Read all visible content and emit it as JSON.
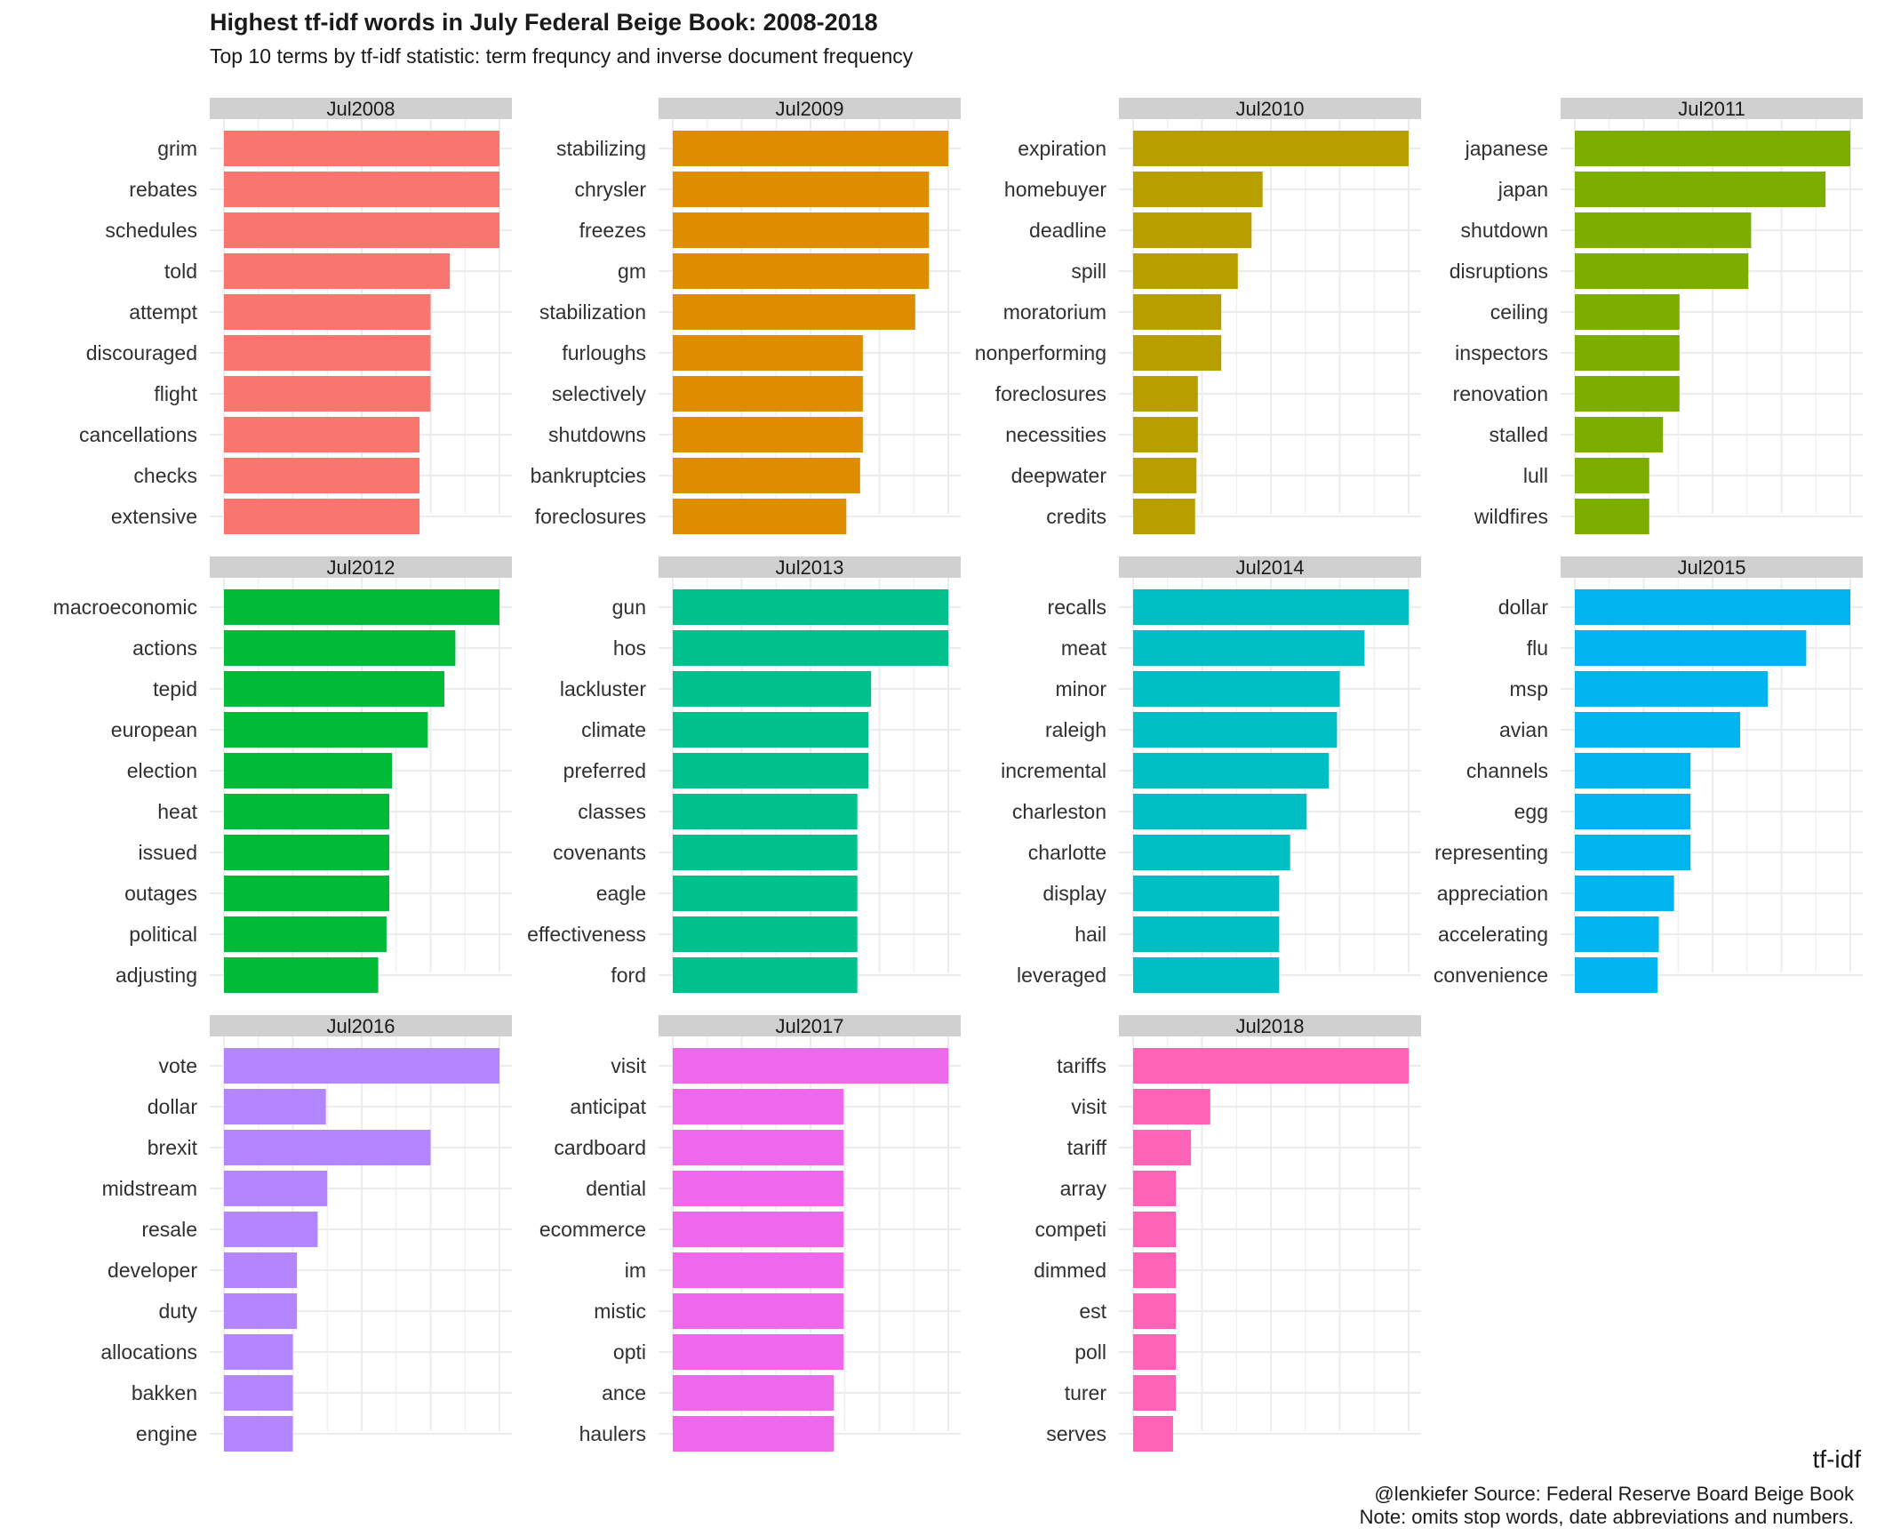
{
  "chart_data": {
    "type": "bar",
    "title": "Highest tf-idf words in July Federal Beige Book: 2008-2018",
    "subtitle": "Top 10 terms by tf-idf statistic: term frequncy and inverse document frequency",
    "xlabel": "tf-idf",
    "ylabel": "",
    "caption": [
      "@lenkiefer Source: Federal Reserve Board Beige Book",
      "Note: omits stop words, date abbreviations and numbers."
    ],
    "orientation": "horizontal",
    "facet_layout": "4 columns, free x scale per panel",
    "grid": true,
    "legend": "none",
    "panels": [
      {
        "name": "Jul2008",
        "color": "#F8766D",
        "terms": [
          "grim",
          "rebates",
          "schedules",
          "told",
          "attempt",
          "discouraged",
          "flight",
          "cancellations",
          "checks",
          "extensive"
        ],
        "values": [
          1.0,
          1.0,
          1.0,
          0.82,
          0.75,
          0.75,
          0.75,
          0.71,
          0.71,
          0.71
        ]
      },
      {
        "name": "Jul2009",
        "color": "#DE8C00",
        "terms": [
          "stabilizing",
          "chrysler",
          "freezes",
          "gm",
          "stabilization",
          "furloughs",
          "selectively",
          "shutdowns",
          "bankruptcies",
          "foreclosures"
        ],
        "values": [
          1.0,
          0.93,
          0.93,
          0.93,
          0.88,
          0.69,
          0.69,
          0.69,
          0.68,
          0.63
        ]
      },
      {
        "name": "Jul2010",
        "color": "#B79F00",
        "terms": [
          "expiration",
          "homebuyer",
          "deadline",
          "spill",
          "moratorium",
          "nonperforming",
          "foreclosures",
          "necessities",
          "deepwater",
          "credits"
        ],
        "values": [
          1.0,
          0.47,
          0.43,
          0.38,
          0.32,
          0.32,
          0.235,
          0.235,
          0.23,
          0.225
        ]
      },
      {
        "name": "Jul2011",
        "color": "#7CAE00",
        "terms": [
          "japanese",
          "japan",
          "shutdown",
          "disruptions",
          "ceiling",
          "inspectors",
          "renovation",
          "stalled",
          "lull",
          "wildfires"
        ],
        "values": [
          1.0,
          0.91,
          0.64,
          0.63,
          0.38,
          0.38,
          0.38,
          0.32,
          0.27,
          0.27
        ]
      },
      {
        "name": "Jul2012",
        "color": "#00BA38",
        "terms": [
          "macroeconomic",
          "actions",
          "tepid",
          "european",
          "election",
          "heat",
          "issued",
          "outages",
          "political",
          "adjusting"
        ],
        "values": [
          1.0,
          0.84,
          0.8,
          0.74,
          0.61,
          0.6,
          0.6,
          0.6,
          0.59,
          0.56
        ]
      },
      {
        "name": "Jul2013",
        "color": "#00C08B",
        "terms": [
          "gun",
          "hos",
          "lackluster",
          "climate",
          "preferred",
          "classes",
          "covenants",
          "eagle",
          "effectiveness",
          "ford"
        ],
        "values": [
          1.0,
          1.0,
          0.72,
          0.71,
          0.71,
          0.67,
          0.67,
          0.67,
          0.67,
          0.67
        ]
      },
      {
        "name": "Jul2014",
        "color": "#00BFC4",
        "terms": [
          "recalls",
          "meat",
          "minor",
          "raleigh",
          "incremental",
          "charleston",
          "charlotte",
          "display",
          "hail",
          "leveraged"
        ],
        "values": [
          1.0,
          0.84,
          0.75,
          0.74,
          0.71,
          0.63,
          0.57,
          0.53,
          0.53,
          0.53
        ]
      },
      {
        "name": "Jul2015",
        "color": "#00B4F0",
        "terms": [
          "dollar",
          "flu",
          "msp",
          "avian",
          "channels",
          "egg",
          "representing",
          "appreciation",
          "accelerating",
          "convenience"
        ],
        "values": [
          1.0,
          0.84,
          0.7,
          0.6,
          0.42,
          0.42,
          0.42,
          0.36,
          0.305,
          0.3
        ]
      },
      {
        "name": "Jul2016",
        "color": "#B385FF",
        "terms": [
          "vote",
          "dollar",
          "brexit",
          "midstream",
          "resale",
          "developer",
          "duty",
          "allocations",
          "bakken",
          "engine"
        ],
        "values": [
          1.0,
          0.37,
          0.75,
          0.375,
          0.34,
          0.265,
          0.265,
          0.25,
          0.25,
          0.25
        ]
      },
      {
        "name": "Jul2017",
        "color": "#EF67EB",
        "terms": [
          "visit",
          "anticipat",
          "cardboard",
          "dential",
          "ecommerce",
          "im",
          "mistic",
          "opti",
          "ance",
          "haulers"
        ],
        "values": [
          1.0,
          0.62,
          0.62,
          0.62,
          0.62,
          0.62,
          0.62,
          0.62,
          0.585,
          0.585
        ]
      },
      {
        "name": "Jul2018",
        "color": "#FF63B6",
        "terms": [
          "tariffs",
          "visit",
          "tariff",
          "array",
          "competi",
          "dimmed",
          "est",
          "poll",
          "turer",
          "serves"
        ],
        "values": [
          1.0,
          0.28,
          0.21,
          0.155,
          0.155,
          0.155,
          0.155,
          0.155,
          0.155,
          0.145
        ]
      }
    ]
  }
}
